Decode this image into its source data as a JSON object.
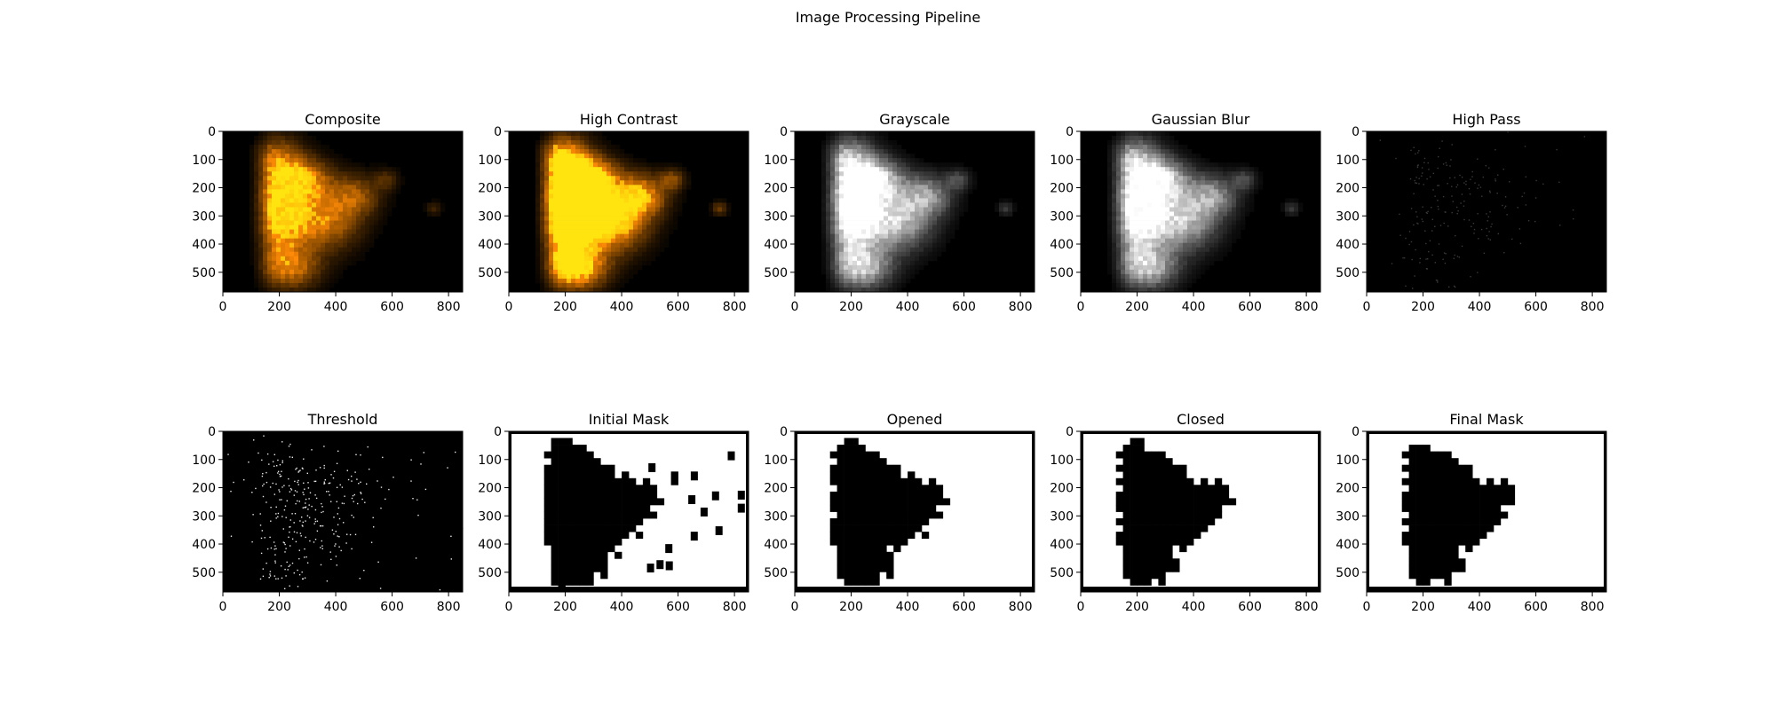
{
  "figure": {
    "title": "Image Processing Pipeline"
  },
  "chart_data": [
    {
      "type": "heatmap",
      "title": "Composite",
      "style": "color",
      "gain": 1.0,
      "xlim": [
        0,
        850
      ],
      "ylim": [
        570,
        0
      ],
      "xticks": [
        0,
        200,
        400,
        600,
        800
      ],
      "yticks": [
        0,
        100,
        200,
        300,
        400,
        500
      ]
    },
    {
      "type": "heatmap",
      "title": "High Contrast",
      "style": "color",
      "gain": 1.7,
      "xlim": [
        0,
        850
      ],
      "ylim": [
        570,
        0
      ],
      "xticks": [
        0,
        200,
        400,
        600,
        800
      ],
      "yticks": [
        0,
        100,
        200,
        300,
        400,
        500
      ]
    },
    {
      "type": "heatmap",
      "title": "Grayscale",
      "style": "gray",
      "gain": 1.2,
      "xlim": [
        0,
        850
      ],
      "ylim": [
        570,
        0
      ],
      "xticks": [
        0,
        200,
        400,
        600,
        800
      ],
      "yticks": [
        0,
        100,
        200,
        300,
        400,
        500
      ]
    },
    {
      "type": "heatmap",
      "title": "Gaussian Blur",
      "style": "gray",
      "gain": 1.15,
      "xlim": [
        0,
        850
      ],
      "ylim": [
        570,
        0
      ],
      "xticks": [
        0,
        200,
        400,
        600,
        800
      ],
      "yticks": [
        0,
        100,
        200,
        300,
        400,
        500
      ]
    },
    {
      "type": "heatmap",
      "title": "High Pass",
      "style": "highpass",
      "gain": 1.0,
      "xlim": [
        0,
        850
      ],
      "ylim": [
        570,
        0
      ],
      "xticks": [
        0,
        200,
        400,
        600,
        800
      ],
      "yticks": [
        0,
        100,
        200,
        300,
        400,
        500
      ]
    },
    {
      "type": "heatmap",
      "title": "Threshold",
      "style": "threshold",
      "gain": 1.0,
      "xlim": [
        0,
        850
      ],
      "ylim": [
        570,
        0
      ],
      "xticks": [
        0,
        200,
        400,
        600,
        800
      ],
      "yticks": [
        0,
        100,
        200,
        300,
        400,
        500
      ]
    },
    {
      "type": "heatmap",
      "title": "Initial Mask",
      "style": "mask",
      "variant": 0,
      "xlim": [
        0,
        850
      ],
      "ylim": [
        570,
        0
      ],
      "xticks": [
        0,
        200,
        400,
        600,
        800
      ],
      "yticks": [
        0,
        100,
        200,
        300,
        400,
        500
      ]
    },
    {
      "type": "heatmap",
      "title": "Opened",
      "style": "mask",
      "variant": 1,
      "xlim": [
        0,
        850
      ],
      "ylim": [
        570,
        0
      ],
      "xticks": [
        0,
        200,
        400,
        600,
        800
      ],
      "yticks": [
        0,
        100,
        200,
        300,
        400,
        500
      ]
    },
    {
      "type": "heatmap",
      "title": "Closed",
      "style": "mask",
      "variant": 2,
      "xlim": [
        0,
        850
      ],
      "ylim": [
        570,
        0
      ],
      "xticks": [
        0,
        200,
        400,
        600,
        800
      ],
      "yticks": [
        0,
        100,
        200,
        300,
        400,
        500
      ]
    },
    {
      "type": "heatmap",
      "title": "Final Mask",
      "style": "mask",
      "variant": 3,
      "xlim": [
        0,
        850
      ],
      "ylim": [
        570,
        0
      ],
      "xticks": [
        0,
        200,
        400,
        600,
        800
      ],
      "yticks": [
        0,
        100,
        200,
        300,
        400,
        500
      ]
    }
  ]
}
